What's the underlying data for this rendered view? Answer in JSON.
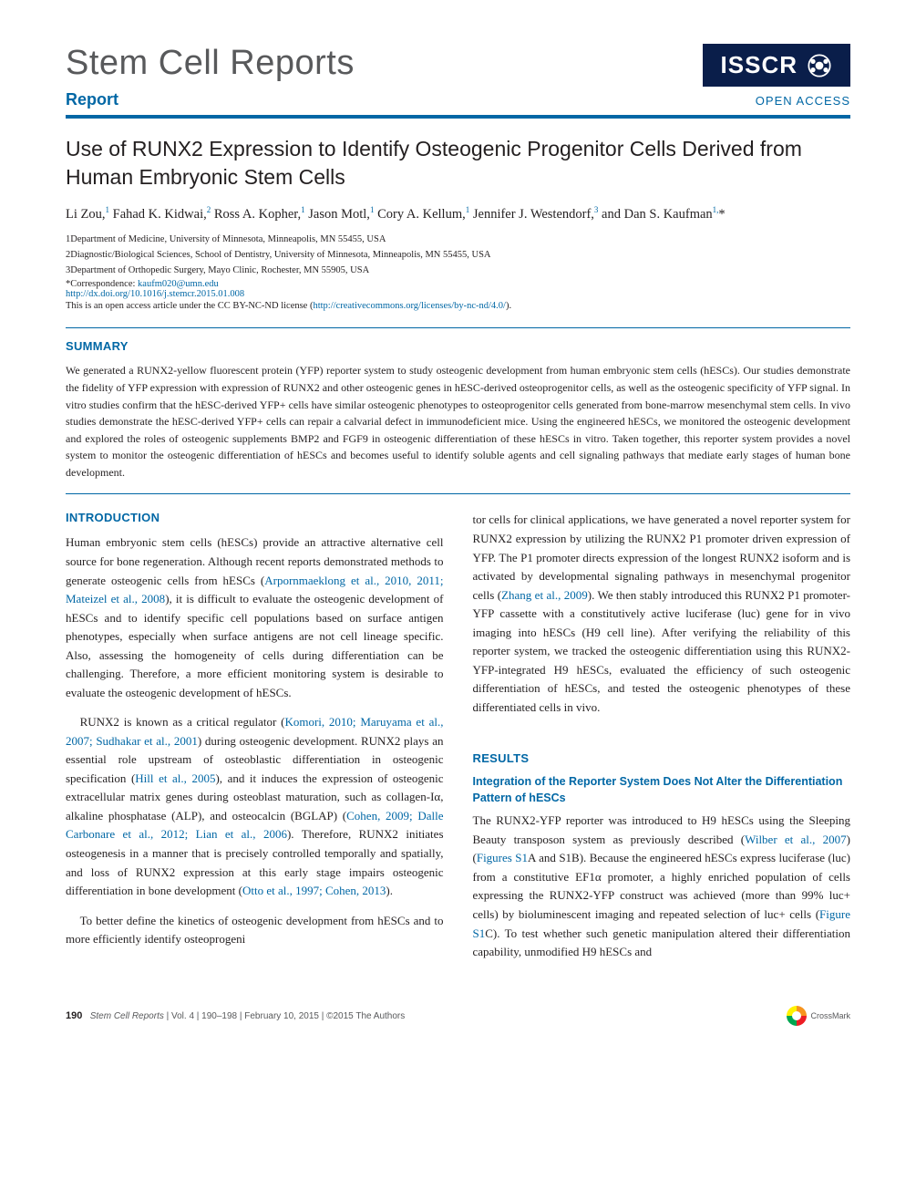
{
  "header": {
    "journal_title": "Stem Cell Reports",
    "badge": "ISSCR",
    "report_label": "Report",
    "open_access": "OPEN ACCESS"
  },
  "article": {
    "title": "Use of RUNX2 Expression to Identify Osteogenic Progenitor Cells Derived from Human Embryonic Stem Cells",
    "authors_html": "Li Zou,<sup>1</sup> Fahad K. Kidwai,<sup>2</sup> Ross A. Kopher,<sup>1</sup> Jason Motl,<sup>1</sup> Cory A. Kellum,<sup>1</sup> Jennifer J. Westendorf,<sup>3</sup> and Dan S. Kaufman<sup>1,</sup>*",
    "affiliations": [
      "1Department of Medicine, University of Minnesota, Minneapolis, MN 55455, USA",
      "2Diagnostic/Biological Sciences, School of Dentistry, University of Minnesota, Minneapolis, MN 55455, USA",
      "3Department of Orthopedic Surgery, Mayo Clinic, Rochester, MN 55905, USA"
    ],
    "correspondence_label": "*Correspondence: ",
    "correspondence_email": "kaufm020@umn.edu",
    "doi": "http://dx.doi.org/10.1016/j.stemcr.2015.01.008",
    "license_prefix": "This is an open access article under the CC BY-NC-ND license (",
    "license_link": "http://creativecommons.org/licenses/by-nc-nd/4.0/",
    "license_suffix": ")."
  },
  "sections": {
    "summary_title": "SUMMARY",
    "summary_text": "We generated a RUNX2-yellow fluorescent protein (YFP) reporter system to study osteogenic development from human embryonic stem cells (hESCs). Our studies demonstrate the fidelity of YFP expression with expression of RUNX2 and other osteogenic genes in hESC-derived osteoprogenitor cells, as well as the osteogenic specificity of YFP signal. In vitro studies confirm that the hESC-derived YFP+ cells have similar osteogenic phenotypes to osteoprogenitor cells generated from bone-marrow mesenchymal stem cells. In vivo studies demonstrate the hESC-derived YFP+ cells can repair a calvarial defect in immunodeficient mice. Using the engineered hESCs, we monitored the osteogenic development and explored the roles of osteogenic supplements BMP2 and FGF9 in osteogenic differentiation of these hESCs in vitro. Taken together, this reporter system provides a novel system to monitor the osteogenic differentiation of hESCs and becomes useful to identify soluble agents and cell signaling pathways that mediate early stages of human bone development.",
    "intro_title": "INTRODUCTION",
    "results_title": "RESULTS",
    "results_sub1": "Integration of the Reporter System Does Not Alter the Differentiation Pattern of hESCs"
  },
  "body": {
    "intro_p1_pre": "Human embryonic stem cells (hESCs) provide an attractive alternative cell source for bone regeneration. Although recent reports demonstrated methods to generate osteogenic cells from hESCs (",
    "intro_p1_ref1": "Arpornmaeklong et al., 2010, 2011; Mateizel et al., 2008",
    "intro_p1_post": "), it is difficult to evaluate the osteogenic development of hESCs and to identify specific cell populations based on surface antigen phenotypes, especially when surface antigens are not cell lineage specific. Also, assessing the homogeneity of cells during differentiation can be challenging. Therefore, a more efficient monitoring system is desirable to evaluate the osteogenic development of hESCs.",
    "intro_p2_a": "RUNX2 is known as a critical regulator (",
    "intro_p2_ref1": "Komori, 2010; Maruyama et al., 2007; Sudhakar et al., 2001",
    "intro_p2_b": ") during osteogenic development. RUNX2 plays an essential role upstream of osteoblastic differentiation in osteogenic specification (",
    "intro_p2_ref2": "Hill et al., 2005",
    "intro_p2_c": "), and it induces the expression of osteogenic extracellular matrix genes during osteoblast maturation, such as collagen-Iα, alkaline phosphatase (ALP), and osteocalcin (BGLAP) (",
    "intro_p2_ref3": "Cohen, 2009; Dalle Carbonare et al., 2012; Lian et al., 2006",
    "intro_p2_d": "). Therefore, RUNX2 initiates osteogenesis in a manner that is precisely controlled temporally and spatially, and loss of RUNX2 expression at this early stage impairs osteogenic differentiation in bone development (",
    "intro_p2_ref4": "Otto et al., 1997; Cohen, 2013",
    "intro_p2_e": ").",
    "intro_p3": "To better define the kinetics of osteogenic development from hESCs and to more efficiently identify osteoprogeni",
    "col2_p1_a": "tor cells for clinical applications, we have generated a novel reporter system for RUNX2 expression by utilizing the RUNX2 P1 promoter driven expression of YFP. The P1 promoter directs expression of the longest RUNX2 isoform and is activated by developmental signaling pathways in mesenchymal progenitor cells (",
    "col2_p1_ref1": "Zhang et al., 2009",
    "col2_p1_b": "). We then stably introduced this RUNX2 P1 promoter-YFP cassette with a constitutively active luciferase (luc) gene for in vivo imaging into hESCs (H9 cell line). After verifying the reliability of this reporter system, we tracked the osteogenic differentiation using this RUNX2-YFP-integrated H9 hESCs, evaluated the efficiency of such osteogenic differentiation of hESCs, and tested the osteogenic phenotypes of these differentiated cells in vivo.",
    "results_p1_a": "The RUNX2-YFP reporter was introduced to H9 hESCs using the Sleeping Beauty transposon system as previously described (",
    "results_p1_ref1": "Wilber et al., 2007",
    "results_p1_b": ") (",
    "results_p1_ref2": "Figures S1",
    "results_p1_c": "A and S1B). Because the engineered hESCs express luciferase (luc) from a constitutive EF1α promoter, a highly enriched population of cells expressing the RUNX2-YFP construct was achieved (more than 99% luc+ cells) by bioluminescent imaging and repeated selection of luc+ cells (",
    "results_p1_ref3": "Figure S1",
    "results_p1_d": "C). To test whether such genetic manipulation altered their differentiation capability, unmodified H9 hESCs and"
  },
  "footer": {
    "page": "190",
    "journal": "Stem Cell Reports",
    "vol": " | Vol. 4 | 190–198 | February 10, 2015 | ©2015 The Authors",
    "crossmark": "CrossMark"
  },
  "colors": {
    "brand_blue": "#0067a5",
    "dark_navy": "#0a1e4a",
    "text": "#231f20",
    "gray": "#58595b"
  }
}
